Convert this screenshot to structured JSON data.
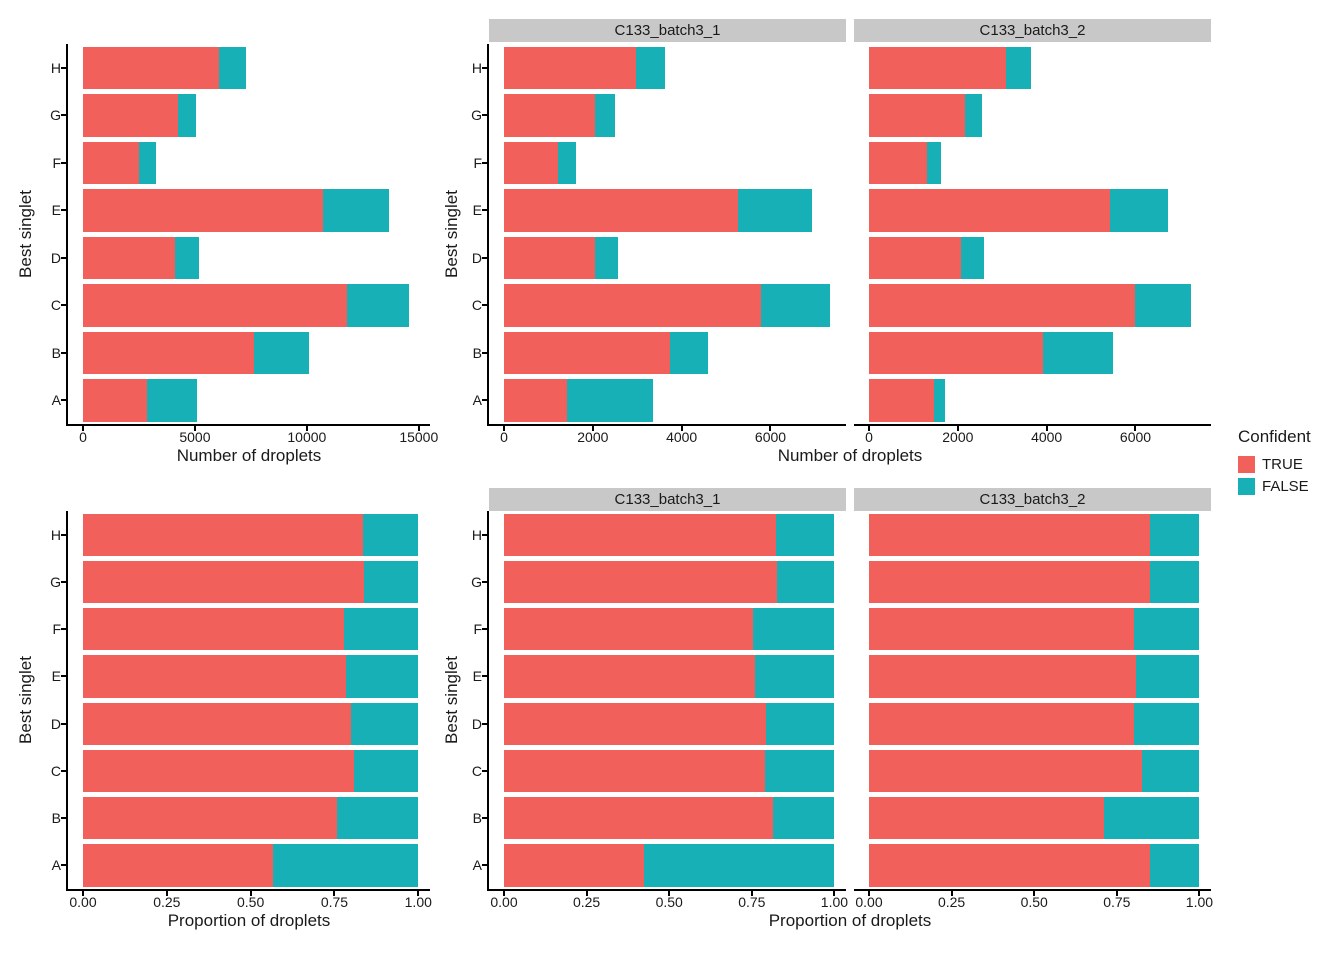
{
  "figure": {
    "description": "Faceted stacked horizontal bar charts of droplet counts and proportions by best singlet, colored by confidence",
    "samples": [
      "C133_batch3_1",
      "C133_batch3_2"
    ]
  },
  "legend": {
    "title": "Confident",
    "entries": [
      {
        "label": "TRUE",
        "color": "#F2605C"
      },
      {
        "label": "FALSE",
        "color": "#17B0B7"
      }
    ]
  },
  "colors": {
    "true": "#F2605C",
    "false": "#17B0B7",
    "strip_bg": "#C8C8C8",
    "axis": "#000000",
    "text": "#1A1A1A"
  },
  "chart_data": [
    {
      "id": "counts-combined",
      "type": "bar",
      "orientation": "horizontal",
      "stacked": true,
      "xlabel": "Number of droplets",
      "ylabel": "Best singlet",
      "categories": [
        "A",
        "B",
        "C",
        "D",
        "E",
        "F",
        "G",
        "H"
      ],
      "xlim": [
        0,
        15500
      ],
      "xticks": {
        "values": [
          0,
          5000,
          10000,
          15000
        ],
        "labels": [
          "0",
          "5000",
          "10000",
          "15000"
        ]
      },
      "facets": [
        {
          "title": null,
          "series": [
            {
              "name": "TRUE",
              "values": [
                2880,
                7650,
                11780,
                4120,
                10700,
                2520,
                4230,
                6070
              ]
            },
            {
              "name": "FALSE",
              "values": [
                2200,
                2440,
                2800,
                1040,
                2960,
                720,
                810,
                1190
              ]
            }
          ]
        }
      ]
    },
    {
      "id": "counts-by-sample",
      "type": "bar",
      "orientation": "horizontal",
      "stacked": true,
      "xlabel": "Number of droplets",
      "ylabel": "Best singlet",
      "categories": [
        "A",
        "B",
        "C",
        "D",
        "E",
        "F",
        "G",
        "H"
      ],
      "xlim": [
        0,
        7700
      ],
      "xticks": {
        "values": [
          0,
          2000,
          4000,
          6000
        ],
        "labels": [
          "0",
          "2000",
          "4000",
          "6000"
        ]
      },
      "facets": [
        {
          "title": "C133_batch3_1",
          "series": [
            {
              "name": "TRUE",
              "values": [
                1420,
                3740,
                5790,
                2040,
                5270,
                1220,
                2060,
                2980
              ]
            },
            {
              "name": "FALSE",
              "values": [
                1940,
                850,
                1550,
                530,
                1660,
                400,
                430,
                640
              ]
            }
          ]
        },
        {
          "title": "C133_batch3_2",
          "series": [
            {
              "name": "TRUE",
              "values": [
                1460,
                3910,
                5990,
                2080,
                5430,
                1300,
                2170,
                3090
              ]
            },
            {
              "name": "FALSE",
              "values": [
                260,
                1590,
                1250,
                510,
                1300,
                320,
                380,
                550
              ]
            }
          ]
        }
      ]
    },
    {
      "id": "proportions-combined",
      "type": "bar",
      "orientation": "horizontal",
      "stacked": true,
      "xlabel": "Proportion of droplets",
      "ylabel": "Best singlet",
      "categories": [
        "A",
        "B",
        "C",
        "D",
        "E",
        "F",
        "G",
        "H"
      ],
      "xlim": [
        0,
        1.035
      ],
      "xticks": {
        "values": [
          0,
          0.25,
          0.5,
          0.75,
          1
        ],
        "labels": [
          "0.00",
          "0.25",
          "0.50",
          "0.75",
          "1.00"
        ]
      },
      "facets": [
        {
          "title": null,
          "series": [
            {
              "name": "TRUE",
              "values": [
                0.567,
                0.758,
                0.808,
                0.798,
                0.783,
                0.778,
                0.839,
                0.836
              ]
            },
            {
              "name": "FALSE",
              "values": [
                0.433,
                0.242,
                0.192,
                0.202,
                0.217,
                0.222,
                0.161,
                0.164
              ]
            }
          ]
        }
      ]
    },
    {
      "id": "proportions-by-sample",
      "type": "bar",
      "orientation": "horizontal",
      "stacked": true,
      "xlabel": "Proportion of droplets",
      "ylabel": "Best singlet",
      "categories": [
        "A",
        "B",
        "C",
        "D",
        "E",
        "F",
        "G",
        "H"
      ],
      "xlim": [
        0,
        1.035
      ],
      "xticks": {
        "values": [
          0,
          0.25,
          0.5,
          0.75,
          1
        ],
        "labels": [
          "0.00",
          "0.25",
          "0.50",
          "0.75",
          "1.00"
        ]
      },
      "facets": [
        {
          "title": "C133_batch3_1",
          "series": [
            {
              "name": "TRUE",
              "values": [
                0.423,
                0.815,
                0.789,
                0.794,
                0.76,
                0.753,
                0.827,
                0.823
              ]
            },
            {
              "name": "FALSE",
              "values": [
                0.577,
                0.185,
                0.211,
                0.206,
                0.24,
                0.247,
                0.173,
                0.177
              ]
            }
          ]
        },
        {
          "title": "C133_batch3_2",
          "series": [
            {
              "name": "TRUE",
              "values": [
                0.849,
                0.711,
                0.827,
                0.803,
                0.807,
                0.802,
                0.851,
                0.849
              ]
            },
            {
              "name": "FALSE",
              "values": [
                0.151,
                0.289,
                0.173,
                0.197,
                0.193,
                0.198,
                0.149,
                0.151
              ]
            }
          ]
        }
      ]
    }
  ]
}
